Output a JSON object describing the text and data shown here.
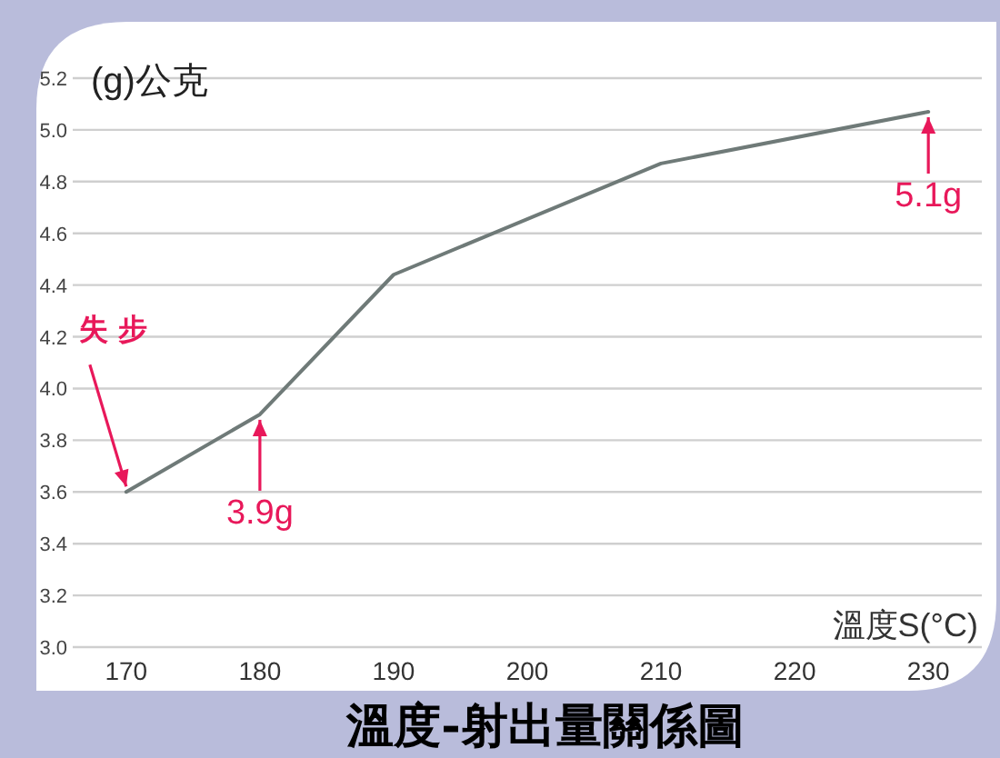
{
  "chart_data": {
    "type": "line",
    "title": "溫度-射出量關係圖",
    "xlabel": "溫度S(°C)",
    "ylabel": "(g)公克",
    "x": [
      170,
      180,
      190,
      210,
      230
    ],
    "series": [
      {
        "color": "#6f7a78",
        "values": [
          3.6,
          3.9,
          4.44,
          4.87,
          5.07
        ]
      }
    ],
    "xlim": [
      166,
      234
    ],
    "xticks": [
      170,
      180,
      190,
      200,
      210,
      220,
      230
    ],
    "ylim": [
      3.0,
      5.2
    ],
    "yticks": [
      {
        "value": 3,
        "label": "3.0"
      },
      3.2,
      3.4,
      3.6,
      3.8,
      {
        "value": 4,
        "label": "4.0"
      },
      4.2,
      4.4,
      4.6,
      4.8,
      {
        "value": 5,
        "label": "5.0"
      },
      5.2
    ],
    "grid": "y",
    "marker": "none",
    "line_style": "solid",
    "annotations": [
      {
        "text": "失 步",
        "x": 170,
        "y": 3.6
      },
      {
        "text": "3.9g",
        "x": 180,
        "y": 3.9
      },
      {
        "text": "5.1g",
        "x": 230,
        "y": 5.07
      }
    ]
  }
}
